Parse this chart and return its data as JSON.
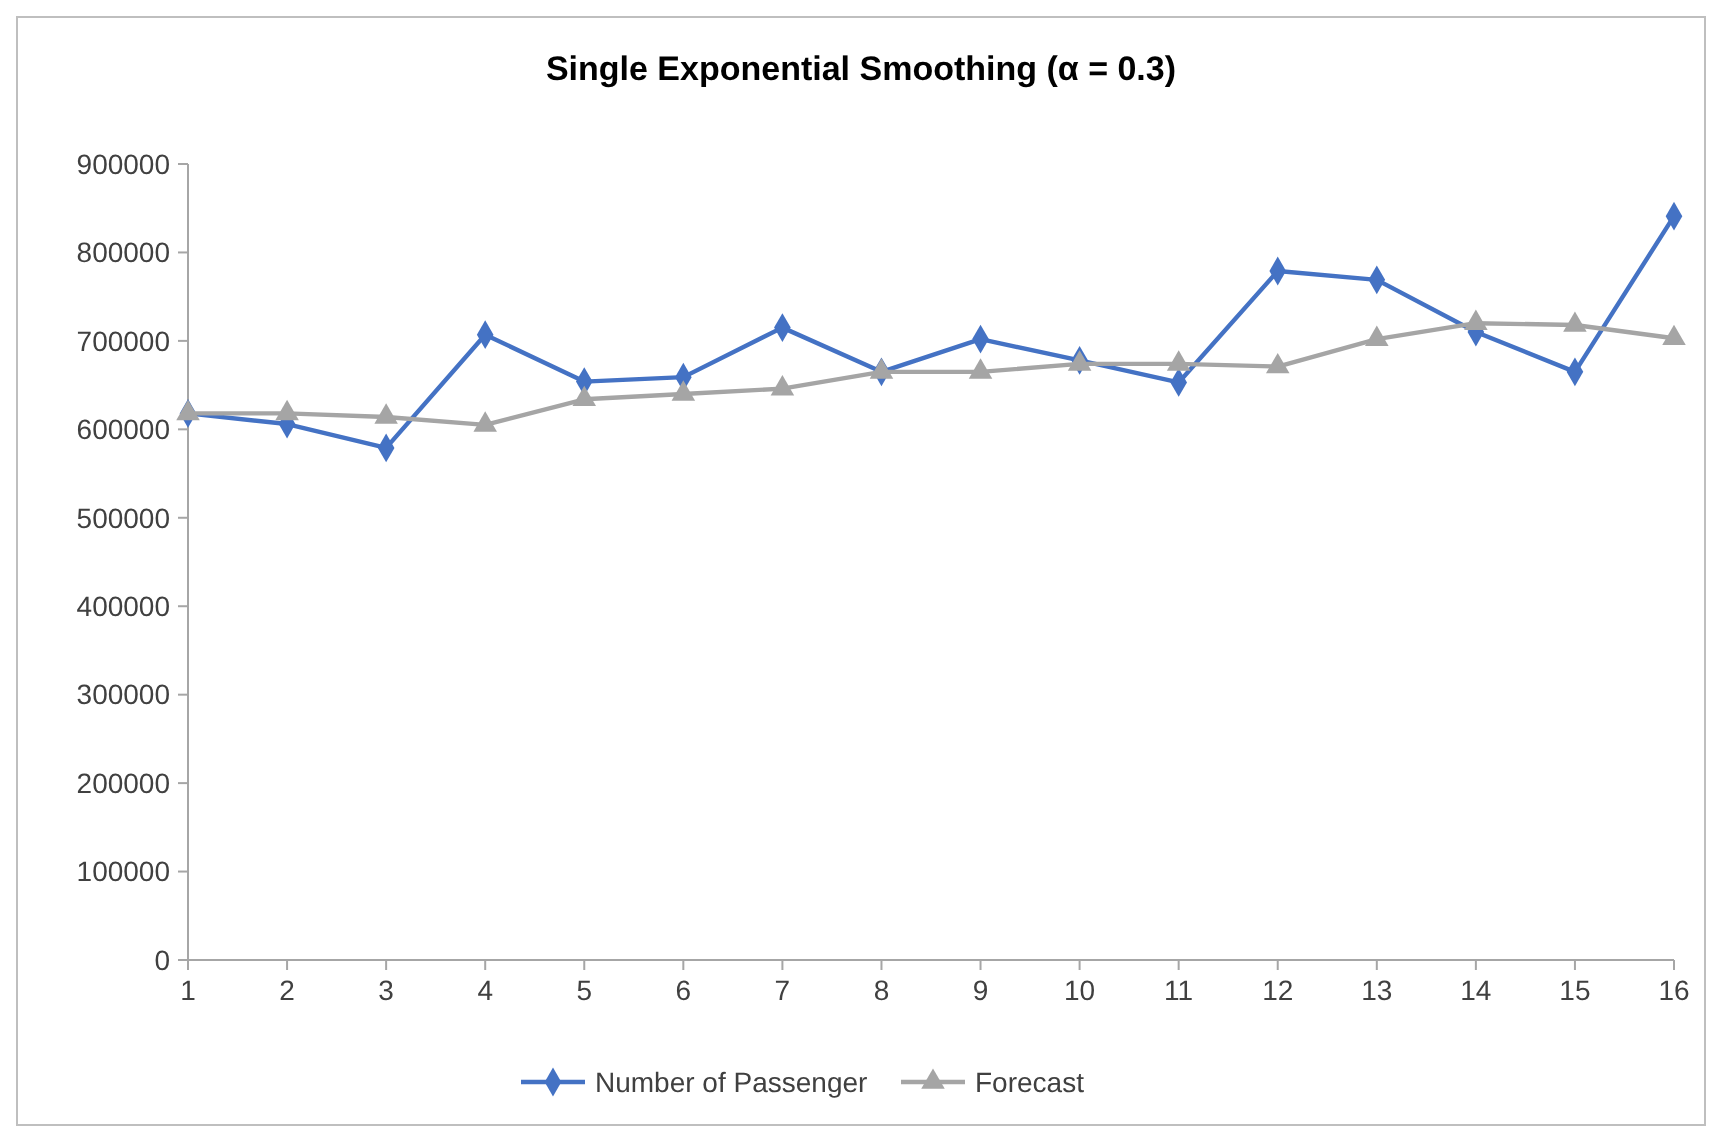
{
  "chart_data": {
    "type": "line",
    "title": "Single Exponential Smoothing (α = 0.3)",
    "x": [
      1,
      2,
      3,
      4,
      5,
      6,
      7,
      8,
      9,
      10,
      11,
      12,
      13,
      14,
      15,
      16
    ],
    "xlim": [
      1,
      16
    ],
    "xticks": [
      1,
      2,
      3,
      4,
      5,
      6,
      7,
      8,
      9,
      10,
      11,
      12,
      13,
      14,
      15,
      16
    ],
    "ylim": [
      0,
      900000
    ],
    "yticks": [
      0,
      100000,
      200000,
      300000,
      400000,
      500000,
      600000,
      700000,
      800000,
      900000
    ],
    "legend": "bottom",
    "grid": false,
    "series": [
      {
        "name": "Number of Passenger",
        "color": "#4472c4",
        "marker": "diamond",
        "values": [
          618000,
          606000,
          579000,
          707000,
          654000,
          659000,
          715000,
          665000,
          702000,
          678000,
          653000,
          779000,
          769000,
          710000,
          665000,
          841000
        ]
      },
      {
        "name": "Forecast",
        "color": "#a5a5a5",
        "marker": "triangle",
        "values": [
          618000,
          618000,
          614000,
          605000,
          634000,
          640000,
          646000,
          665000,
          665000,
          674000,
          674000,
          671000,
          702000,
          720000,
          718000,
          703000
        ]
      }
    ]
  }
}
